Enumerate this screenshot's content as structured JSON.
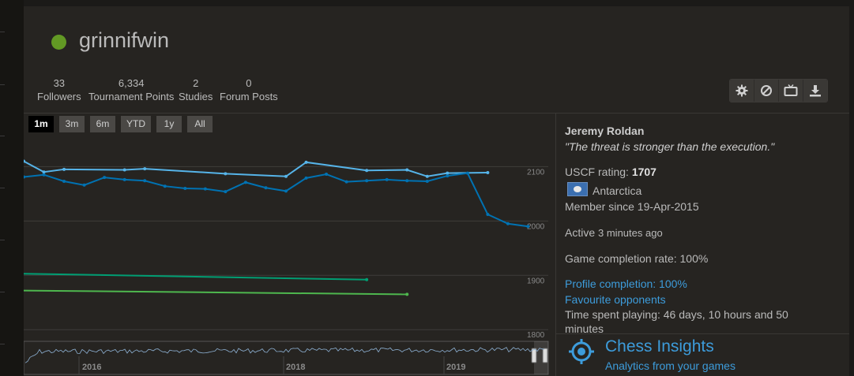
{
  "profile": {
    "username": "grinnifwin",
    "status_color": "#629924"
  },
  "stats": [
    {
      "value": "33",
      "label": "Followers"
    },
    {
      "value": "6,334",
      "label": "Tournament Points"
    },
    {
      "value": "2",
      "label": "Studies"
    },
    {
      "value": "0",
      "label": "Forum Posts"
    }
  ],
  "actions": [
    {
      "icon": "gear-icon",
      "label": "Settings"
    },
    {
      "icon": "block-icon",
      "label": "Block"
    },
    {
      "icon": "tv-icon",
      "label": "Watch"
    },
    {
      "icon": "download-icon",
      "label": "Export games"
    }
  ],
  "ranges": [
    {
      "label": "1m",
      "active": true
    },
    {
      "label": "3m",
      "active": false
    },
    {
      "label": "6m",
      "active": false
    },
    {
      "label": "YTD",
      "active": false
    },
    {
      "label": "1y",
      "active": false
    },
    {
      "label": "All",
      "active": false
    }
  ],
  "chart_data": {
    "type": "line",
    "title": "",
    "ylim": [
      1780,
      2160
    ],
    "y_ticks": [
      2100,
      2000,
      1900,
      1800
    ],
    "grid": true,
    "x": [
      0,
      1,
      2,
      3,
      4,
      5,
      6,
      7,
      8,
      9,
      10,
      11,
      12,
      13,
      14,
      15,
      16,
      17,
      18,
      19,
      20,
      21,
      22,
      23,
      24,
      25,
      26
    ],
    "series": [
      {
        "color": "#56b4e9",
        "values": [
          2110,
          2090,
          2095,
          null,
          null,
          2094,
          2096,
          null,
          null,
          null,
          2087,
          null,
          null,
          2082,
          2108,
          null,
          null,
          2093,
          null,
          2094,
          2082,
          2088,
          null,
          2089,
          null,
          null,
          null
        ]
      },
      {
        "color": "#0072b2",
        "values": [
          2081,
          2085,
          2073,
          2066,
          2080,
          2076,
          2074,
          2064,
          2060,
          2059,
          2054,
          2071,
          2061,
          2055,
          2079,
          2086,
          2072,
          2074,
          2076,
          2074,
          2073,
          2083,
          2088,
          2012,
          1995,
          1990,
          null
        ]
      },
      {
        "color": "#009e73",
        "values": [
          1903,
          null,
          null,
          null,
          null,
          null,
          null,
          null,
          null,
          null,
          null,
          null,
          null,
          null,
          null,
          null,
          null,
          1892,
          null,
          null,
          null,
          null,
          null,
          null,
          null,
          null,
          null
        ]
      },
      {
        "color": "#4eb74e",
        "values": [
          1872,
          null,
          null,
          null,
          null,
          null,
          null,
          null,
          null,
          null,
          null,
          null,
          null,
          null,
          null,
          null,
          null,
          null,
          null,
          1865,
          null,
          null,
          null,
          null,
          null,
          null,
          null
        ]
      }
    ],
    "navigator_labels": [
      "2016",
      "2018",
      "2019"
    ]
  },
  "bio": {
    "real_name": "Jeremy Roldan",
    "quote": "\"The threat is stronger than the execution.\"",
    "uscf_label": "USCF rating: ",
    "uscf_value": "1707",
    "country": "Antarctica",
    "member_since": "Member since 19-Apr-2015",
    "active_label": "Active ",
    "active_ago": "3 minutes ago",
    "completion_rate": "Game completion rate: 100%",
    "profile_completion": "Profile completion: 100%",
    "favourite_opponents": "Favourite opponents",
    "time_playing": "Time spent playing: 46 days, 10 hours and 50 minutes"
  },
  "insights": {
    "title": "Chess Insights",
    "subtitle": "Analytics from your games"
  }
}
